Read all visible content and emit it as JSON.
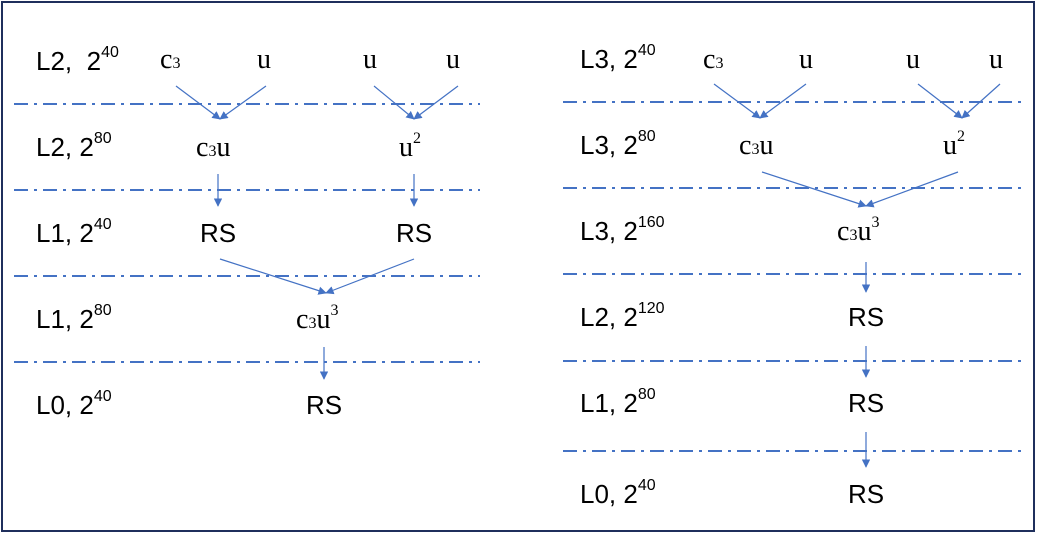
{
  "diagram": {
    "left": {
      "levels": [
        {
          "label": "L2,",
          "base": "2",
          "exp": "40"
        },
        {
          "label": "L2,",
          "base": "2",
          "exp": "80"
        },
        {
          "label": "L1,",
          "base": "2",
          "exp": "40"
        },
        {
          "label": "L1,",
          "base": "2",
          "exp": "80"
        },
        {
          "label": "L0,",
          "base": "2",
          "exp": "40"
        }
      ],
      "row1": {
        "c": "c",
        "c_sub": "3",
        "u1": "u",
        "u2": "u",
        "u3": "u"
      },
      "row2": {
        "c3u_c": "c",
        "c3u_sub": "3",
        "c3u_u": "u",
        "u2_base": "u",
        "u2_exp": "2"
      },
      "row3": {
        "rs1": "RS",
        "rs2": "RS"
      },
      "row4": {
        "c": "c",
        "sub": "3",
        "u": "u",
        "exp": "3"
      },
      "row5": {
        "rs": "RS"
      }
    },
    "right": {
      "levels": [
        {
          "label": "L3,",
          "base": "2",
          "exp": "40"
        },
        {
          "label": "L3,",
          "base": "2",
          "exp": "80"
        },
        {
          "label": "L3,",
          "base": "2",
          "exp": "160"
        },
        {
          "label": "L2,",
          "base": "2",
          "exp": "120"
        },
        {
          "label": "L1,",
          "base": "2",
          "exp": "80"
        },
        {
          "label": "L0,",
          "base": "2",
          "exp": "40"
        }
      ],
      "row1": {
        "c": "c",
        "c_sub": "3",
        "u1": "u",
        "u2": "u",
        "u3": "u"
      },
      "row2": {
        "c3u_c": "c",
        "c3u_sub": "3",
        "c3u_u": "u",
        "u2_base": "u",
        "u2_exp": "2"
      },
      "row3": {
        "c": "c",
        "sub": "3",
        "u": "u",
        "exp": "3"
      },
      "row4": {
        "rs": "RS"
      },
      "row5": {
        "rs": "RS"
      },
      "row6": {
        "rs": "RS"
      }
    }
  },
  "colors": {
    "line": "#4472c4",
    "arrow": "#4472c4",
    "border": "#1f2f5c"
  }
}
